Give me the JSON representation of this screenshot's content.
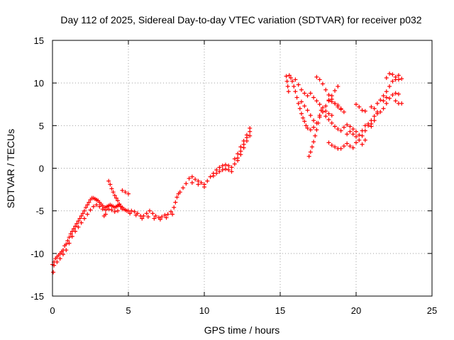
{
  "chart_data": {
    "type": "scatter",
    "title": "Day 112 of 2025, Sidereal Day-to-day VTEC variation (SDTVAR) for receiver p032",
    "xlabel": "GPS time / hours",
    "ylabel": "SDTVAR / TECUs",
    "xlim": [
      0,
      25
    ],
    "ylim": [
      -15,
      15
    ],
    "xticks": [
      "0",
      "5",
      "10",
      "15",
      "20",
      "25"
    ],
    "yticks": [
      "-15",
      "-10",
      "-5",
      "0",
      "5",
      "10",
      "15"
    ],
    "grid": true,
    "marker": "+",
    "color": "#ff0000",
    "series": [
      {
        "points": [
          [
            0.0,
            -11.3
          ],
          [
            0.05,
            -12.2
          ],
          [
            0.1,
            -11.0
          ],
          [
            0.2,
            -10.6
          ],
          [
            0.3,
            -10.4
          ],
          [
            0.4,
            -10.2
          ],
          [
            0.5,
            -10.0
          ],
          [
            0.6,
            -9.8
          ],
          [
            0.7,
            -9.6
          ],
          [
            0.8,
            -9.1
          ],
          [
            0.9,
            -8.9
          ],
          [
            1.0,
            -8.5
          ],
          [
            1.1,
            -8.1
          ],
          [
            1.2,
            -7.7
          ],
          [
            1.3,
            -7.4
          ],
          [
            1.4,
            -7.1
          ],
          [
            1.5,
            -6.8
          ],
          [
            1.6,
            -6.5
          ],
          [
            1.7,
            -6.2
          ],
          [
            1.8,
            -5.9
          ],
          [
            1.9,
            -5.6
          ],
          [
            2.0,
            -5.3
          ],
          [
            2.1,
            -5.0
          ],
          [
            2.2,
            -4.6
          ],
          [
            2.3,
            -4.3
          ],
          [
            2.4,
            -4.0
          ],
          [
            2.5,
            -3.7
          ],
          [
            2.6,
            -3.5
          ],
          [
            2.7,
            -3.5
          ],
          [
            2.8,
            -3.6
          ],
          [
            2.9,
            -3.7
          ],
          [
            3.0,
            -3.8
          ],
          [
            3.1,
            -4.0
          ],
          [
            3.2,
            -4.2
          ],
          [
            3.3,
            -4.4
          ],
          [
            3.4,
            -4.6
          ],
          [
            3.5,
            -4.6
          ],
          [
            3.6,
            -4.5
          ],
          [
            3.7,
            -4.4
          ],
          [
            3.8,
            -4.3
          ],
          [
            3.9,
            -4.4
          ],
          [
            4.0,
            -4.5
          ],
          [
            4.1,
            -4.6
          ],
          [
            4.2,
            -4.5
          ],
          [
            4.3,
            -4.4
          ],
          [
            4.4,
            -4.3
          ],
          [
            4.5,
            -4.5
          ],
          [
            4.6,
            -4.6
          ],
          [
            4.7,
            -4.8
          ],
          [
            4.8,
            -4.9
          ],
          [
            4.9,
            -5.0
          ],
          [
            5.0,
            -5.0
          ],
          [
            5.2,
            -5.0
          ],
          [
            5.4,
            -5.1
          ],
          [
            5.6,
            -5.3
          ],
          [
            5.8,
            -5.6
          ],
          [
            6.0,
            -5.6
          ],
          [
            6.2,
            -5.3
          ],
          [
            6.4,
            -5.0
          ],
          [
            6.6,
            -5.3
          ],
          [
            6.8,
            -5.6
          ],
          [
            7.0,
            -5.8
          ],
          [
            7.2,
            -5.7
          ],
          [
            7.4,
            -5.5
          ],
          [
            7.6,
            -5.4
          ],
          [
            7.8,
            -5.1
          ],
          [
            8.0,
            -4.6
          ],
          [
            8.1,
            -4.0
          ],
          [
            8.2,
            -3.4
          ],
          [
            8.3,
            -3.0
          ],
          [
            8.4,
            -2.8
          ],
          [
            8.6,
            -2.3
          ],
          [
            8.8,
            -1.8
          ],
          [
            9.0,
            -1.2
          ],
          [
            9.2,
            -1.0
          ],
          [
            9.4,
            -1.3
          ],
          [
            9.6,
            -1.5
          ],
          [
            9.8,
            -1.7
          ],
          [
            10.0,
            -1.9
          ],
          [
            10.2,
            -1.5
          ],
          [
            10.4,
            -1.0
          ],
          [
            10.6,
            -0.6
          ],
          [
            10.8,
            -0.2
          ],
          [
            11.0,
            0.1
          ],
          [
            11.2,
            0.3
          ],
          [
            11.4,
            0.4
          ],
          [
            11.6,
            0.3
          ],
          [
            11.8,
            0.1
          ],
          [
            12.0,
            0.5
          ],
          [
            12.2,
            1.2
          ],
          [
            12.4,
            2.0
          ],
          [
            12.6,
            2.8
          ],
          [
            12.8,
            3.6
          ],
          [
            13.0,
            4.3
          ],
          [
            3.7,
            -1.5
          ],
          [
            3.8,
            -1.9
          ],
          [
            3.9,
            -2.4
          ],
          [
            4.0,
            -2.8
          ],
          [
            4.1,
            -3.2
          ],
          [
            4.2,
            -3.5
          ],
          [
            4.3,
            -3.8
          ],
          [
            4.4,
            -4.2
          ],
          [
            4.5,
            -4.5
          ],
          [
            4.6,
            -4.8
          ],
          [
            4.6,
            -2.6
          ],
          [
            4.8,
            -2.8
          ],
          [
            5.0,
            -3.0
          ],
          [
            0.1,
            -11.4
          ],
          [
            0.3,
            -11.0
          ],
          [
            0.5,
            -10.6
          ],
          [
            0.7,
            -10.1
          ],
          [
            0.9,
            -9.6
          ],
          [
            1.1,
            -8.8
          ],
          [
            1.3,
            -8.0
          ],
          [
            1.5,
            -7.4
          ],
          [
            1.7,
            -6.9
          ],
          [
            1.9,
            -6.4
          ],
          [
            2.1,
            -5.9
          ],
          [
            2.3,
            -5.4
          ],
          [
            2.5,
            -4.9
          ],
          [
            2.7,
            -4.5
          ],
          [
            2.9,
            -4.3
          ],
          [
            3.1,
            -4.5
          ],
          [
            3.3,
            -4.8
          ],
          [
            3.5,
            -4.9
          ],
          [
            3.7,
            -4.8
          ],
          [
            3.9,
            -4.9
          ],
          [
            4.1,
            -5.1
          ],
          [
            4.3,
            -5.0
          ],
          [
            5.1,
            -5.3
          ],
          [
            5.5,
            -5.5
          ],
          [
            5.9,
            -5.9
          ],
          [
            6.3,
            -5.7
          ],
          [
            6.7,
            -5.9
          ],
          [
            7.1,
            -6.0
          ],
          [
            7.5,
            -5.8
          ],
          [
            7.9,
            -5.4
          ],
          [
            3.4,
            -5.6
          ],
          [
            3.5,
            -5.4
          ],
          [
            12.0,
            1.1
          ],
          [
            12.2,
            1.7
          ],
          [
            12.4,
            2.5
          ],
          [
            12.6,
            3.2
          ],
          [
            12.8,
            3.9
          ],
          [
            13.0,
            4.7
          ],
          [
            12.2,
            0.9
          ],
          [
            12.4,
            1.6
          ],
          [
            12.6,
            2.4
          ],
          [
            12.8,
            3.2
          ],
          [
            13.0,
            3.8
          ],
          [
            11.0,
            -0.4
          ],
          [
            11.2,
            -0.2
          ],
          [
            11.4,
            -0.1
          ],
          [
            11.6,
            -0.2
          ],
          [
            11.8,
            -0.4
          ],
          [
            10.6,
            -0.9
          ],
          [
            10.8,
            -0.6
          ],
          [
            9.2,
            -1.7
          ],
          [
            9.6,
            -1.9
          ],
          [
            10.0,
            -2.2
          ],
          [
            15.4,
            10.8
          ],
          [
            15.45,
            10.2
          ],
          [
            15.5,
            9.6
          ],
          [
            15.55,
            9.0
          ],
          [
            15.6,
            10.9
          ],
          [
            15.7,
            10.6
          ],
          [
            15.8,
            10.2
          ],
          [
            15.9,
            9.6
          ],
          [
            16.0,
            9.0
          ],
          [
            16.1,
            8.3
          ],
          [
            16.2,
            7.6
          ],
          [
            16.3,
            7.0
          ],
          [
            16.4,
            6.4
          ],
          [
            16.5,
            5.9
          ],
          [
            16.6,
            5.5
          ],
          [
            16.7,
            5.0
          ],
          [
            16.8,
            4.7
          ],
          [
            16.0,
            10.4
          ],
          [
            16.2,
            9.8
          ],
          [
            16.4,
            9.2
          ],
          [
            16.6,
            8.8
          ],
          [
            16.8,
            8.5
          ],
          [
            17.0,
            8.8
          ],
          [
            16.4,
            7.8
          ],
          [
            16.6,
            7.3
          ],
          [
            16.8,
            6.8
          ],
          [
            17.0,
            6.2
          ],
          [
            17.2,
            5.6
          ],
          [
            16.9,
            1.4
          ],
          [
            17.0,
            1.9
          ],
          [
            17.1,
            2.5
          ],
          [
            17.2,
            3.1
          ],
          [
            17.3,
            3.8
          ],
          [
            17.4,
            4.5
          ],
          [
            17.5,
            5.3
          ],
          [
            17.6,
            6.2
          ],
          [
            17.7,
            6.8
          ],
          [
            17.0,
            4.5
          ],
          [
            17.2,
            4.8
          ],
          [
            17.4,
            5.3
          ],
          [
            17.6,
            6.0
          ],
          [
            17.8,
            6.6
          ],
          [
            18.0,
            7.3
          ],
          [
            18.2,
            7.9
          ],
          [
            18.4,
            8.5
          ],
          [
            18.6,
            9.1
          ],
          [
            18.8,
            9.6
          ],
          [
            17.2,
            8.3
          ],
          [
            17.4,
            7.9
          ],
          [
            17.6,
            7.5
          ],
          [
            17.8,
            7.1
          ],
          [
            18.0,
            6.7
          ],
          [
            18.2,
            6.4
          ],
          [
            18.4,
            6.2
          ],
          [
            17.4,
            10.7
          ],
          [
            17.6,
            10.4
          ],
          [
            17.8,
            9.9
          ],
          [
            18.0,
            9.2
          ],
          [
            18.2,
            8.6
          ],
          [
            18.4,
            8.1
          ],
          [
            18.6,
            7.6
          ],
          [
            18.8,
            7.2
          ],
          [
            19.0,
            6.9
          ],
          [
            19.2,
            6.6
          ],
          [
            18.0,
            6.1
          ],
          [
            18.2,
            5.7
          ],
          [
            18.4,
            5.3
          ],
          [
            18.6,
            4.9
          ],
          [
            18.8,
            4.6
          ],
          [
            19.0,
            4.4
          ],
          [
            19.2,
            4.8
          ],
          [
            19.4,
            5.1
          ],
          [
            19.6,
            4.9
          ],
          [
            19.8,
            4.6
          ],
          [
            20.0,
            4.3
          ],
          [
            18.2,
            8.0
          ],
          [
            18.4,
            7.8
          ],
          [
            18.6,
            7.6
          ],
          [
            18.8,
            7.4
          ],
          [
            19.0,
            7.0
          ],
          [
            18.2,
            3.0
          ],
          [
            18.4,
            2.7
          ],
          [
            18.6,
            2.5
          ],
          [
            18.8,
            2.3
          ],
          [
            19.0,
            2.3
          ],
          [
            19.2,
            2.6
          ],
          [
            19.4,
            2.9
          ],
          [
            19.6,
            2.6
          ],
          [
            19.8,
            2.4
          ],
          [
            19.4,
            4.0
          ],
          [
            19.6,
            4.3
          ],
          [
            19.8,
            4.0
          ],
          [
            20.0,
            3.7
          ],
          [
            20.2,
            3.9
          ],
          [
            20.4,
            4.4
          ],
          [
            20.6,
            5.0
          ],
          [
            20.8,
            5.2
          ],
          [
            21.0,
            4.9
          ],
          [
            20.0,
            3.0
          ],
          [
            20.2,
            3.3
          ],
          [
            20.4,
            3.8
          ],
          [
            20.6,
            4.4
          ],
          [
            20.8,
            5.0
          ],
          [
            21.0,
            5.6
          ],
          [
            21.2,
            6.1
          ],
          [
            21.4,
            6.4
          ],
          [
            21.6,
            6.6
          ],
          [
            21.8,
            7.0
          ],
          [
            22.0,
            7.6
          ],
          [
            22.2,
            8.2
          ],
          [
            22.4,
            8.6
          ],
          [
            22.6,
            8.8
          ],
          [
            22.8,
            8.7
          ],
          [
            20.0,
            7.5
          ],
          [
            20.2,
            7.2
          ],
          [
            20.4,
            6.8
          ],
          [
            20.6,
            6.7
          ],
          [
            21.0,
            7.2
          ],
          [
            21.2,
            7.0
          ],
          [
            21.4,
            6.6
          ],
          [
            21.4,
            7.6
          ],
          [
            21.6,
            8.0
          ],
          [
            21.8,
            8.5
          ],
          [
            22.0,
            9.0
          ],
          [
            22.2,
            9.6
          ],
          [
            22.4,
            10.2
          ],
          [
            22.6,
            10.4
          ],
          [
            22.8,
            10.4
          ],
          [
            22.0,
            10.6
          ],
          [
            22.2,
            11.1
          ],
          [
            22.4,
            11.0
          ],
          [
            22.6,
            10.7
          ],
          [
            22.8,
            10.9
          ],
          [
            23.0,
            10.5
          ],
          [
            22.6,
            7.9
          ],
          [
            22.8,
            7.6
          ],
          [
            23.0,
            7.6
          ],
          [
            22.0,
            8.3
          ],
          [
            21.8,
            7.9
          ],
          [
            21.2,
            5.6
          ],
          [
            21.0,
            5.2
          ],
          [
            20.6,
            3.3
          ],
          [
            20.4,
            2.8
          ]
        ]
      }
    ]
  }
}
